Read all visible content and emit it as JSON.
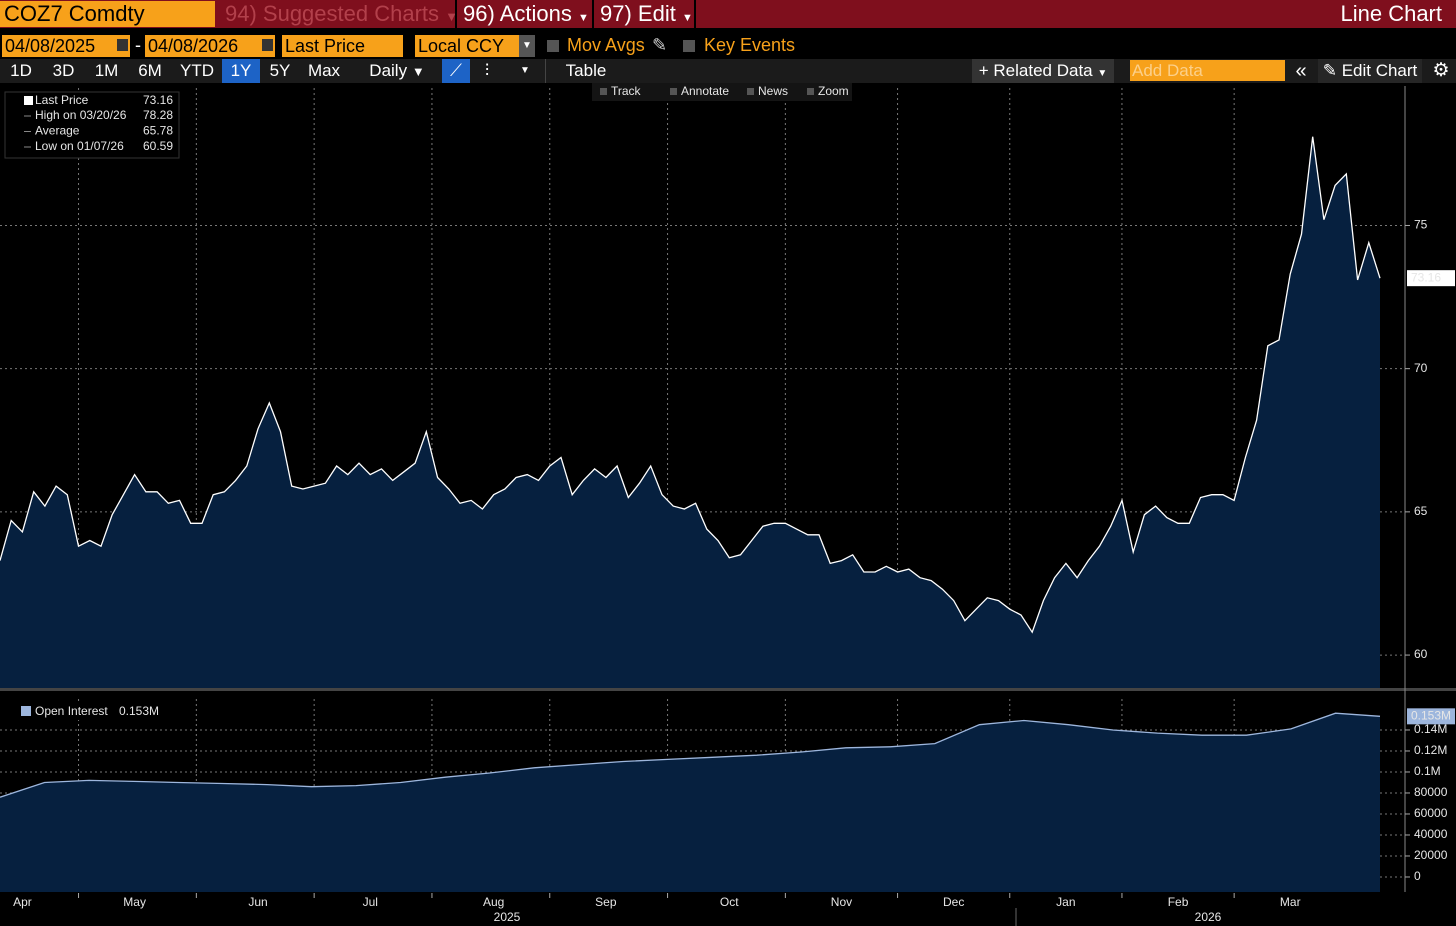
{
  "header": {
    "security": "COZ7 Comdty",
    "menus": [
      "94) Suggested Charts",
      "96) Actions",
      "97) Edit"
    ],
    "chart_type_label": "Line Chart"
  },
  "controls": {
    "start_date": "04/08/2025",
    "date_separator": "-",
    "end_date": "04/08/2026",
    "field": "Last Price",
    "currency": "Local CCY",
    "checkboxes": [
      "Mov Avgs",
      "Key Events"
    ],
    "periods": [
      "1D",
      "3D",
      "1M",
      "6M",
      "YTD",
      "1Y",
      "5Y",
      "Max"
    ],
    "active_period_index": 5,
    "frequency": "Daily",
    "table_button": "Table",
    "related_data": "Related Data",
    "add_data_placeholder": "Add Data",
    "edit_chart": "Edit Chart"
  },
  "chart_tools": [
    "Track",
    "Annotate",
    "News",
    "Zoom"
  ],
  "chart_data": [
    {
      "type": "area",
      "series": [
        {
          "name": "Last Price",
          "color": "#ffffff",
          "fill": "#06203f",
          "values": [
            63.3,
            64.7,
            64.3,
            65.7,
            65.2,
            65.9,
            65.6,
            63.8,
            64.0,
            63.8,
            64.9,
            65.6,
            66.3,
            65.7,
            65.7,
            65.3,
            65.4,
            64.6,
            64.6,
            65.6,
            65.7,
            66.1,
            66.6,
            67.9,
            68.8,
            67.8,
            65.9,
            65.8,
            65.9,
            66.0,
            66.6,
            66.3,
            66.7,
            66.3,
            66.5,
            66.1,
            66.4,
            66.7,
            67.8,
            66.2,
            65.8,
            65.3,
            65.4,
            65.1,
            65.6,
            65.8,
            66.2,
            66.3,
            66.1,
            66.6,
            66.9,
            65.6,
            66.1,
            66.5,
            66.2,
            66.6,
            65.5,
            66.0,
            66.6,
            65.6,
            65.2,
            65.1,
            65.3,
            64.4,
            64.0,
            63.4,
            63.5,
            64.0,
            64.5,
            64.6,
            64.6,
            64.4,
            64.2,
            64.2,
            63.2,
            63.3,
            63.5,
            62.9,
            62.9,
            63.1,
            62.9,
            63.0,
            62.7,
            62.6,
            62.3,
            61.9,
            61.2,
            61.6,
            62.0,
            61.9,
            61.6,
            61.4,
            60.8,
            61.9,
            62.7,
            63.2,
            62.7,
            63.3,
            63.8,
            64.5,
            65.4,
            63.6,
            64.9,
            65.2,
            64.8,
            64.6,
            64.6,
            65.5,
            65.6,
            65.6,
            65.4,
            66.9,
            68.2,
            70.8,
            71.0,
            73.3,
            74.7,
            78.1,
            75.2,
            76.4,
            76.8,
            73.1,
            74.4,
            73.16
          ]
        }
      ],
      "categories": [
        null,
        null,
        "Apr",
        null,
        null,
        null,
        null,
        null,
        null,
        null,
        null,
        null,
        "May",
        null,
        null,
        null,
        null,
        null,
        null,
        null,
        null,
        null,
        null,
        "Jun",
        null,
        null,
        null,
        null,
        null,
        null,
        null,
        null,
        null,
        "Jul",
        null,
        null,
        null,
        null,
        null,
        null,
        null,
        null,
        null,
        null,
        "Aug",
        null,
        null,
        null,
        null,
        null,
        null,
        null,
        null,
        null,
        "Sep",
        null,
        null,
        null,
        null,
        null,
        null,
        null,
        null,
        null,
        null,
        "Oct",
        null,
        null,
        null,
        null,
        null,
        null,
        null,
        null,
        null,
        "Nov",
        null,
        null,
        null,
        null,
        null,
        null,
        null,
        null,
        null,
        "Dec",
        null,
        null,
        null,
        null,
        null,
        null,
        null,
        null,
        null,
        "Jan",
        null,
        null,
        null,
        null,
        null,
        null,
        null,
        null,
        null,
        "Feb",
        null,
        null,
        null,
        null,
        null,
        null,
        null,
        null,
        null,
        "Mar",
        null,
        null,
        null,
        null,
        null,
        null,
        null,
        null
      ],
      "x_group_labels": [
        "2025",
        "2026"
      ],
      "ylim": [
        58.85,
        79.8
      ],
      "yticks": [
        60,
        65,
        70,
        75
      ],
      "grid": true,
      "y_axis_side": "right",
      "legend_stats": [
        {
          "label": "High on 03/20/26",
          "value": 78.28
        },
        {
          "label": "Average",
          "value": 65.78
        },
        {
          "label": "Low on 01/07/26",
          "value": 60.59
        }
      ]
    },
    {
      "type": "area",
      "series": [
        {
          "name": "Open Interest",
          "color": "#9db6dd",
          "fill": "#06203f",
          "values": [
            76000,
            90000,
            92000,
            91000,
            90000,
            89000,
            88000,
            86000,
            87000,
            90000,
            95000,
            99000,
            104000,
            107000,
            110000,
            112000,
            114000,
            116000,
            119000,
            123000,
            124000,
            127000,
            145000,
            149000,
            145000,
            140000,
            137000,
            135000,
            135000,
            141000,
            156000,
            153000
          ],
          "last_value_label": "0.153M"
        }
      ],
      "ylim": [
        -14300,
        169500
      ],
      "yticks": [
        0,
        20000,
        40000,
        60000,
        80000,
        {
          "value": 100000,
          "label": "0.1M"
        },
        {
          "value": 120000,
          "label": "0.12M"
        },
        {
          "value": 140000,
          "label": "0.14M"
        }
      ],
      "grid": true,
      "y_axis_side": "right"
    }
  ]
}
